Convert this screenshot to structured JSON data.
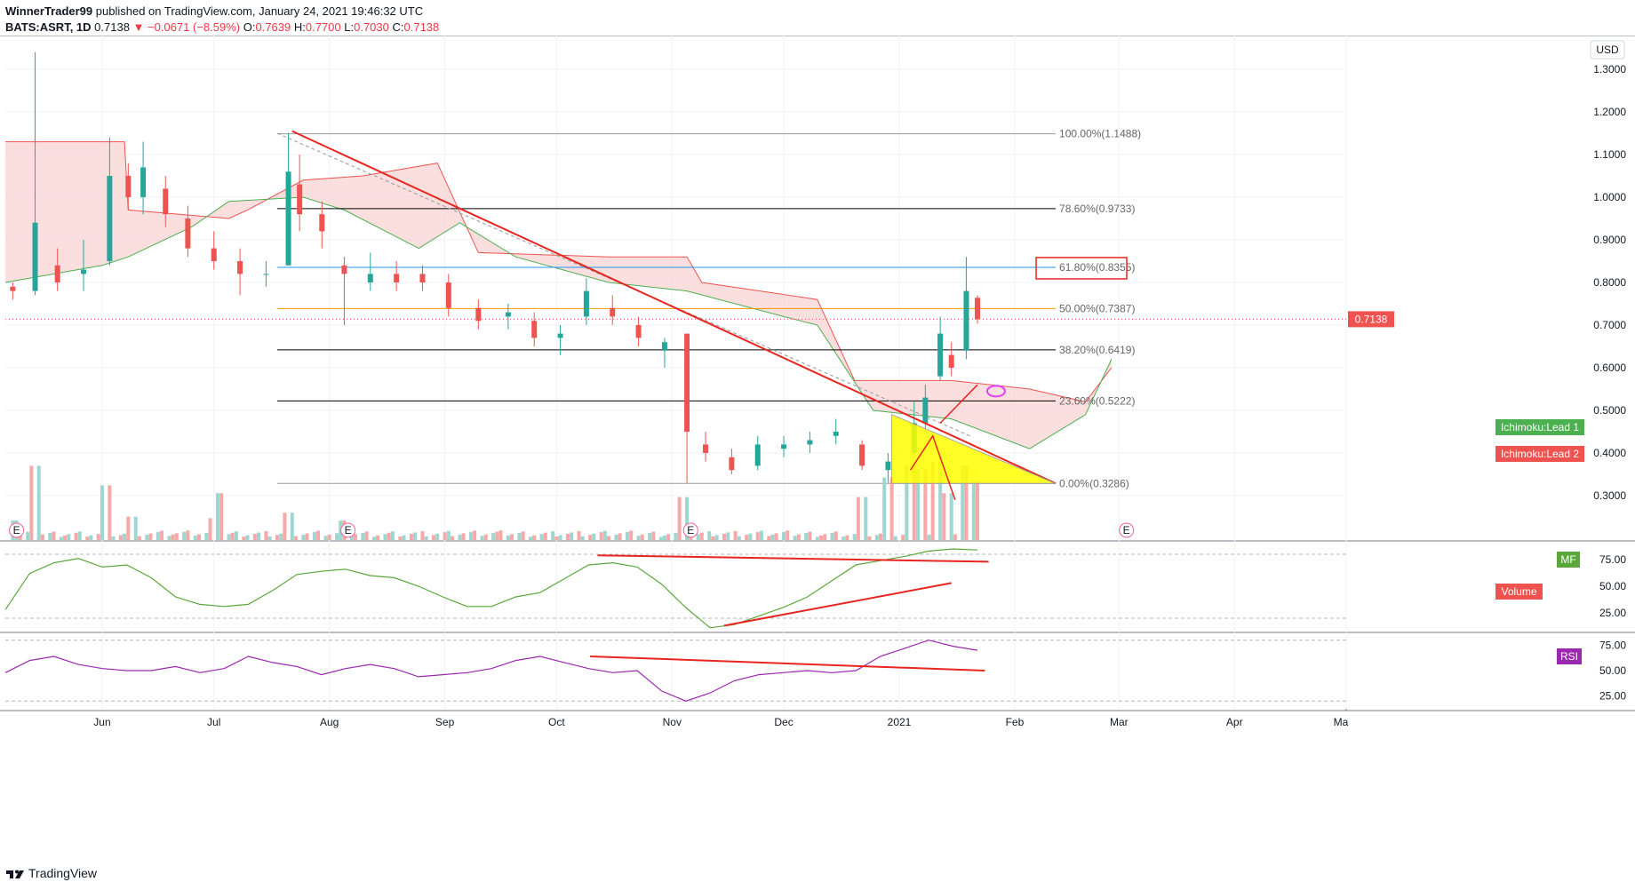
{
  "header": {
    "publisher": "WinnerTrader99",
    "published_text": "published on TradingView.com, January 24, 2021 19:46:32 UTC",
    "symbol": "BATS:ASRT, 1D",
    "last": "0.7138",
    "change": "▼ −0.0671 (−8.59%)",
    "o_label": "O:",
    "o": "0.7639",
    "h_label": "H:",
    "h": "0.7700",
    "l_label": "L:",
    "l": "0.7030",
    "c_label": "C:",
    "c": "0.7138"
  },
  "footer": {
    "brand": "TradingView"
  },
  "colors": {
    "up": "#26a69a",
    "down": "#ef5350",
    "cloud": "#f8c9c9",
    "lead1": "#4caf50",
    "lead2": "#ef5350",
    "trend": "#e8251f",
    "fib_blue": "#2196f3",
    "fib_orange": "#ff9800",
    "triangle": "#ffff00",
    "mf": "#5aa83a",
    "rsi": "#9c27b0"
  },
  "price_axis": {
    "currency": "USD",
    "ticks": [
      "1.3000",
      "1.2000",
      "1.1000",
      "1.0000",
      "0.9000",
      "0.8000",
      "0.7000",
      "0.6000",
      "0.5000",
      "0.4000",
      "0.3000"
    ],
    "last_price_tag": "0.7138"
  },
  "time_axis": {
    "labels": [
      "Jun",
      "Jul",
      "Aug",
      "Sep",
      "Oct",
      "Nov",
      "Dec",
      "2021",
      "Feb",
      "Mar",
      "Apr",
      "Ma"
    ]
  },
  "fib_levels": [
    {
      "label": "100.00%(1.1488)",
      "price": 1.1488,
      "color": "#999999"
    },
    {
      "label": "78.60%(0.9733)",
      "price": 0.9733,
      "color": "#000000"
    },
    {
      "label": "61.80%(0.8355)",
      "price": 0.8355,
      "color": "#2196f3"
    },
    {
      "label": "50.00%(0.7387)",
      "price": 0.7387,
      "color": "#ff9800"
    },
    {
      "label": "38.20%(0.6419)",
      "price": 0.6419,
      "color": "#000000"
    },
    {
      "label": "23.60%(0.5222)",
      "price": 0.5222,
      "color": "#000000"
    },
    {
      "label": "0.00%(0.3286)",
      "price": 0.3286,
      "color": "#999999"
    }
  ],
  "legend_tags": {
    "lead1": "Ichimoku:Lead 1",
    "lead2": "Ichimoku:Lead 2",
    "volume": "Volume",
    "mf": "MF",
    "rsi": "RSI"
  },
  "earnings_marker": "E",
  "mf_panel": {
    "ticks": [
      "75.00",
      "50.00",
      "25.00"
    ]
  },
  "rsi_panel": {
    "ticks": [
      "75.00",
      "50.00",
      "25.00"
    ]
  },
  "chart_data": {
    "type": "candlestick",
    "title": "",
    "symbol": "BATS:ASRT",
    "interval": "1D",
    "ylim": [
      0.26,
      1.4
    ],
    "x_range": [
      "2020-05-06",
      "2021-05-01"
    ],
    "candles_approx": [
      {
        "x": "2020-05-08",
        "o": 0.79,
        "h": 0.8,
        "l": 0.76,
        "c": 0.78
      },
      {
        "x": "2020-05-14",
        "o": 0.78,
        "h": 1.34,
        "l": 0.77,
        "c": 0.94
      },
      {
        "x": "2020-05-20",
        "o": 0.84,
        "h": 0.88,
        "l": 0.78,
        "c": 0.8
      },
      {
        "x": "2020-05-27",
        "o": 0.82,
        "h": 0.9,
        "l": 0.78,
        "c": 0.83
      },
      {
        "x": "2020-06-03",
        "o": 0.85,
        "h": 1.14,
        "l": 0.84,
        "c": 1.05
      },
      {
        "x": "2020-06-08",
        "o": 1.05,
        "h": 1.08,
        "l": 0.97,
        "c": 1.0
      },
      {
        "x": "2020-06-12",
        "o": 1.0,
        "h": 1.13,
        "l": 0.96,
        "c": 1.07
      },
      {
        "x": "2020-06-18",
        "o": 1.02,
        "h": 1.05,
        "l": 0.93,
        "c": 0.96
      },
      {
        "x": "2020-06-24",
        "o": 0.95,
        "h": 0.98,
        "l": 0.86,
        "c": 0.88
      },
      {
        "x": "2020-07-01",
        "o": 0.88,
        "h": 0.92,
        "l": 0.83,
        "c": 0.85
      },
      {
        "x": "2020-07-08",
        "o": 0.85,
        "h": 0.88,
        "l": 0.77,
        "c": 0.82
      },
      {
        "x": "2020-07-15",
        "o": 0.82,
        "h": 0.85,
        "l": 0.79,
        "c": 0.82
      },
      {
        "x": "2020-07-21",
        "o": 0.84,
        "h": 1.15,
        "l": 0.84,
        "c": 1.06
      },
      {
        "x": "2020-07-24",
        "o": 1.03,
        "h": 1.1,
        "l": 0.92,
        "c": 0.96
      },
      {
        "x": "2020-07-30",
        "o": 0.96,
        "h": 0.99,
        "l": 0.88,
        "c": 0.92
      },
      {
        "x": "2020-08-05",
        "o": 0.84,
        "h": 0.86,
        "l": 0.7,
        "c": 0.82
      },
      {
        "x": "2020-08-12",
        "o": 0.8,
        "h": 0.87,
        "l": 0.78,
        "c": 0.82
      },
      {
        "x": "2020-08-19",
        "o": 0.82,
        "h": 0.85,
        "l": 0.78,
        "c": 0.8
      },
      {
        "x": "2020-08-26",
        "o": 0.82,
        "h": 0.84,
        "l": 0.78,
        "c": 0.8
      },
      {
        "x": "2020-09-02",
        "o": 0.8,
        "h": 0.82,
        "l": 0.72,
        "c": 0.74
      },
      {
        "x": "2020-09-10",
        "o": 0.74,
        "h": 0.76,
        "l": 0.69,
        "c": 0.71
      },
      {
        "x": "2020-09-18",
        "o": 0.72,
        "h": 0.75,
        "l": 0.69,
        "c": 0.73
      },
      {
        "x": "2020-09-25",
        "o": 0.71,
        "h": 0.73,
        "l": 0.65,
        "c": 0.67
      },
      {
        "x": "2020-10-02",
        "o": 0.67,
        "h": 0.7,
        "l": 0.63,
        "c": 0.68
      },
      {
        "x": "2020-10-09",
        "o": 0.72,
        "h": 0.81,
        "l": 0.7,
        "c": 0.78
      },
      {
        "x": "2020-10-16",
        "o": 0.74,
        "h": 0.77,
        "l": 0.7,
        "c": 0.72
      },
      {
        "x": "2020-10-23",
        "o": 0.7,
        "h": 0.72,
        "l": 0.65,
        "c": 0.67
      },
      {
        "x": "2020-10-30",
        "o": 0.64,
        "h": 0.67,
        "l": 0.6,
        "c": 0.66
      },
      {
        "x": "2020-11-05",
        "o": 0.68,
        "h": 0.68,
        "l": 0.33,
        "c": 0.45
      },
      {
        "x": "2020-11-10",
        "o": 0.42,
        "h": 0.45,
        "l": 0.38,
        "c": 0.4
      },
      {
        "x": "2020-11-17",
        "o": 0.39,
        "h": 0.41,
        "l": 0.35,
        "c": 0.36
      },
      {
        "x": "2020-11-24",
        "o": 0.37,
        "h": 0.44,
        "l": 0.36,
        "c": 0.42
      },
      {
        "x": "2020-12-01",
        "o": 0.41,
        "h": 0.44,
        "l": 0.39,
        "c": 0.42
      },
      {
        "x": "2020-12-08",
        "o": 0.42,
        "h": 0.45,
        "l": 0.4,
        "c": 0.43
      },
      {
        "x": "2020-12-15",
        "o": 0.44,
        "h": 0.48,
        "l": 0.42,
        "c": 0.45
      },
      {
        "x": "2020-12-22",
        "o": 0.42,
        "h": 0.43,
        "l": 0.36,
        "c": 0.37
      },
      {
        "x": "2020-12-29",
        "o": 0.36,
        "h": 0.4,
        "l": 0.33,
        "c": 0.38
      },
      {
        "x": "2021-01-05",
        "o": 0.4,
        "h": 0.52,
        "l": 0.39,
        "c": 0.47
      },
      {
        "x": "2021-01-08",
        "o": 0.47,
        "h": 0.56,
        "l": 0.45,
        "c": 0.53
      },
      {
        "x": "2021-01-12",
        "o": 0.58,
        "h": 0.72,
        "l": 0.57,
        "c": 0.68
      },
      {
        "x": "2021-01-15",
        "o": 0.63,
        "h": 0.66,
        "l": 0.58,
        "c": 0.6
      },
      {
        "x": "2021-01-19",
        "o": 0.64,
        "h": 0.86,
        "l": 0.62,
        "c": 0.78
      },
      {
        "x": "2021-01-22",
        "o": 0.7639,
        "h": 0.77,
        "l": 0.703,
        "c": 0.7138
      }
    ],
    "mf_ylim": [
      10,
      90
    ],
    "rsi_ylim": [
      15,
      85
    ],
    "mf_values_approx": [
      28,
      62,
      72,
      76,
      68,
      70,
      58,
      40,
      33,
      31,
      33,
      46,
      61,
      64,
      66,
      60,
      58,
      50,
      40,
      31,
      31,
      40,
      44,
      57,
      70,
      72,
      68,
      52,
      30,
      11,
      14,
      22,
      30,
      40,
      55,
      70,
      74,
      78,
      83,
      85,
      84
    ],
    "rsi_values_approx": [
      48,
      60,
      64,
      56,
      52,
      50,
      50,
      54,
      48,
      52,
      64,
      58,
      54,
      46,
      52,
      56,
      52,
      44,
      46,
      48,
      52,
      60,
      64,
      58,
      52,
      48,
      50,
      30,
      20,
      28,
      40,
      46,
      48,
      50,
      48,
      50,
      64,
      72,
      80,
      74,
      70
    ]
  }
}
